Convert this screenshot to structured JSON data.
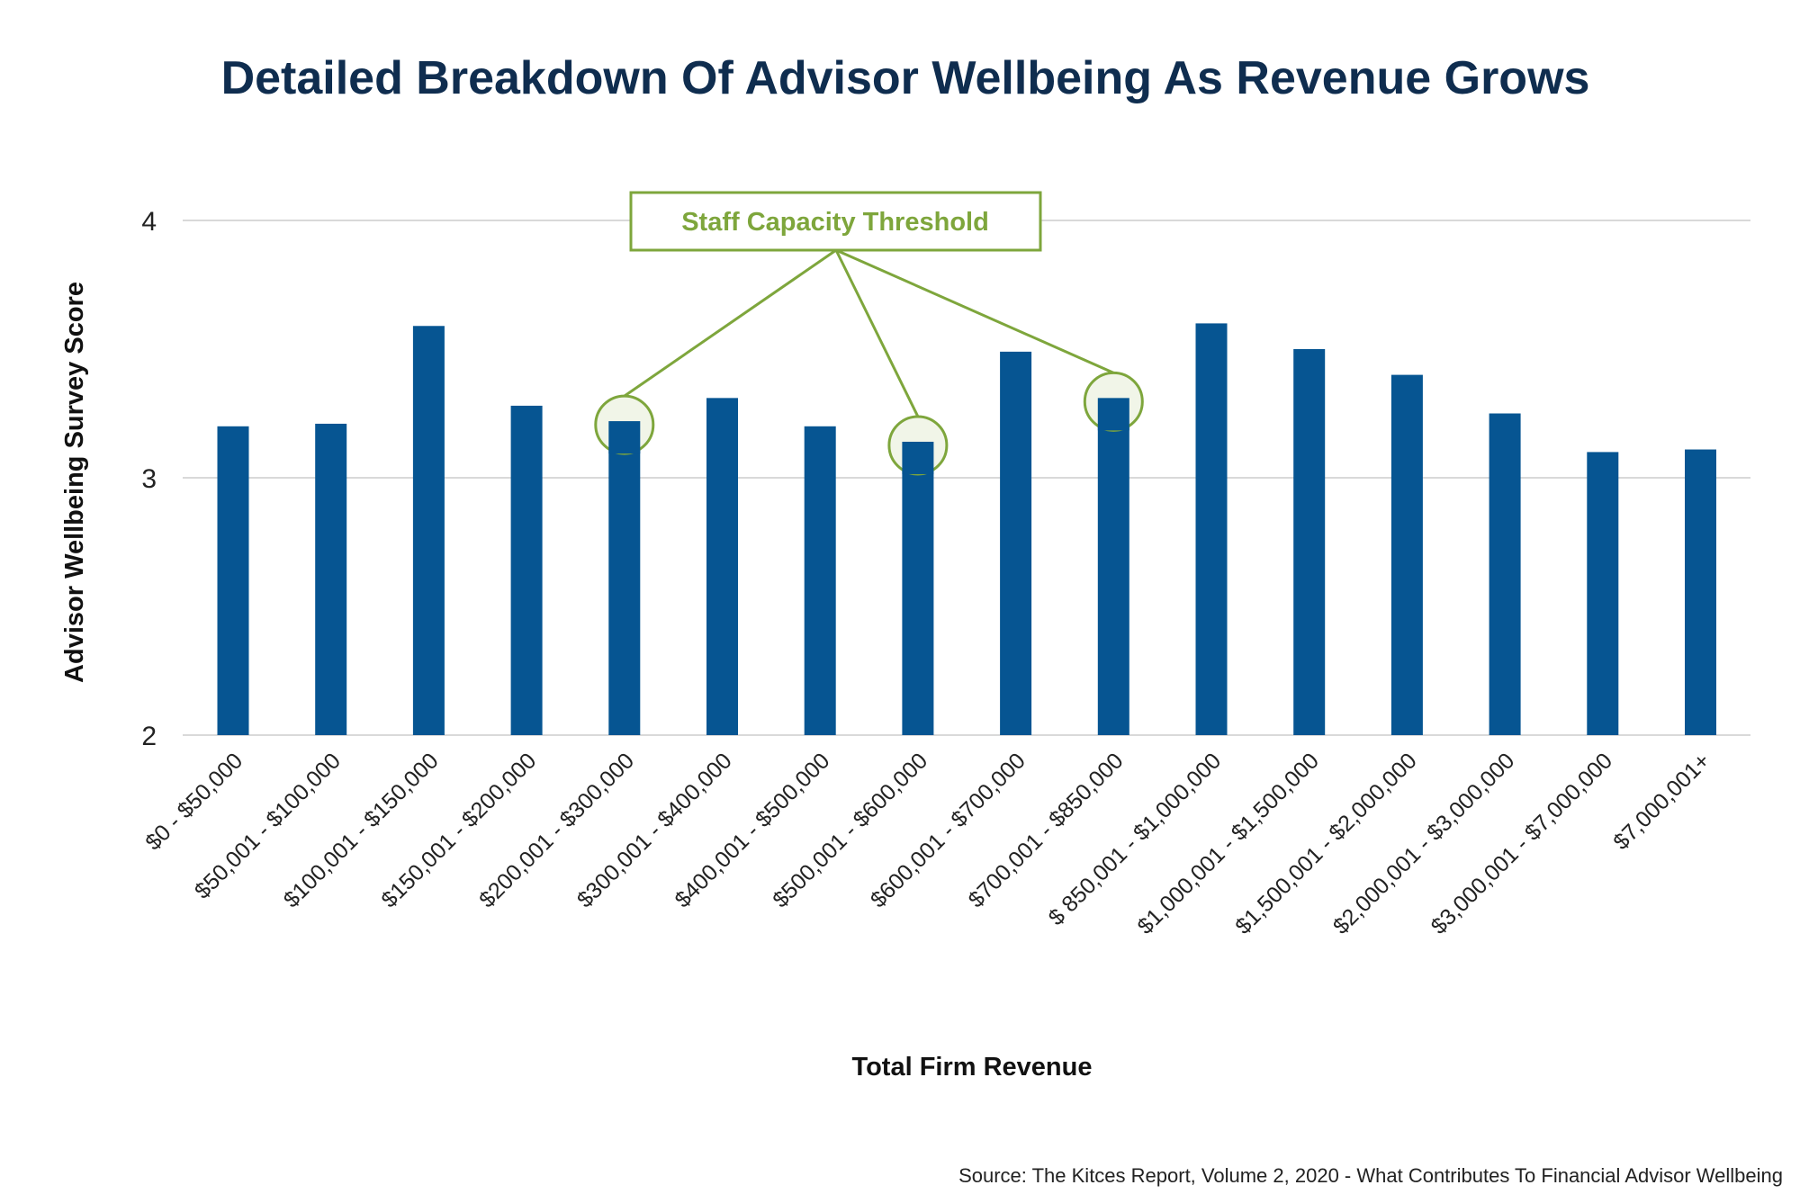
{
  "chart_data": {
    "type": "bar",
    "title": "Detailed Breakdown Of Advisor Wellbeing As Revenue Grows",
    "xlabel": "Total Firm Revenue",
    "ylabel": "Advisor Wellbeing Survey Score",
    "ylim": [
      2,
      4
    ],
    "yticks": [
      "2",
      "3",
      "4"
    ],
    "grid": true,
    "categories": [
      "$0 - $50,000",
      "$50,001 - $100,000",
      "$100,001 - $150,000",
      "$150,001 - $200,000",
      "$200,001 - $300,000",
      "$300,001 - $400,000",
      "$400,001 - $500,000",
      "$500,001 - $600,000",
      "$600,001 - $700,000",
      "$700,001 - $850,000",
      "$ 850,001 - $1,000,000",
      "$1,000,001 - $1,500,000",
      "$1,500,001 - $2,000,000",
      "$2,000,001 - $3,000,000",
      "$3,000,001 - $7,000,000",
      "$7,000,001+"
    ],
    "values": [
      3.2,
      3.21,
      3.59,
      3.28,
      3.22,
      3.31,
      3.2,
      3.14,
      3.49,
      3.31,
      3.6,
      3.5,
      3.4,
      3.25,
      3.1,
      3.11
    ],
    "annotation": {
      "text": "Staff Capacity Threshold",
      "highlighted_indices": [
        4,
        7,
        9
      ]
    },
    "source": "Source: The Kitces Report, Volume 2, 2020 - What Contributes To Financial Advisor Wellbeing",
    "colors": {
      "bar": "#065592",
      "annotation": "#7ea63c",
      "annotation_fill": "#f1f5e8",
      "grid": "#d9d9d9",
      "title": "#0f2d4f"
    }
  }
}
